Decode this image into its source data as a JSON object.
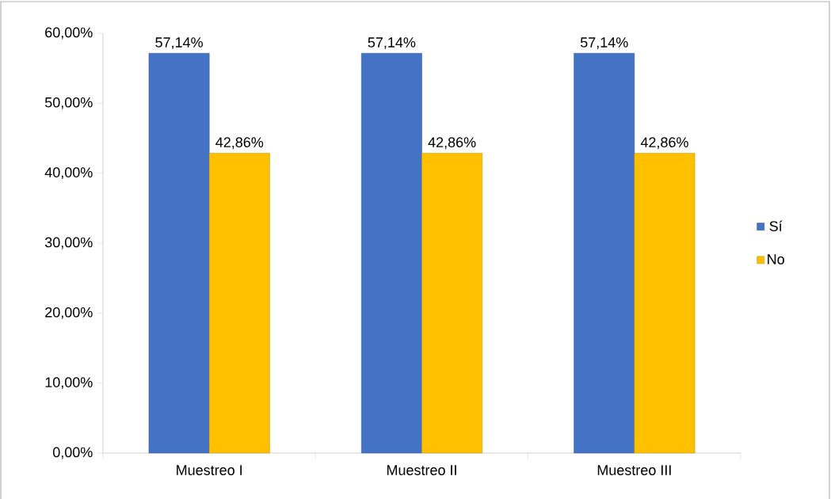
{
  "chart_data": {
    "type": "bar",
    "categories": [
      "Muestreo I",
      "Muestreo II",
      "Muestreo III"
    ],
    "series": [
      {
        "name": "Sí",
        "color": "#4472c4",
        "values": [
          57.14,
          57.14,
          57.14
        ],
        "value_labels": [
          "57,14%",
          "57,14%",
          "57,14%"
        ]
      },
      {
        "name": "No",
        "color": "#ffc000",
        "values": [
          42.86,
          42.86,
          42.86
        ],
        "value_labels": [
          "42,86%",
          "42,86%",
          "42,86%"
        ]
      }
    ],
    "ylim": [
      0,
      60
    ],
    "yticks": [
      {
        "value": 0,
        "label": "0,00%"
      },
      {
        "value": 10,
        "label": "10,00%"
      },
      {
        "value": 20,
        "label": "20,00%"
      },
      {
        "value": 30,
        "label": "30,00%"
      },
      {
        "value": 40,
        "label": "40,00%"
      },
      {
        "value": 50,
        "label": "50,00%"
      },
      {
        "value": 60,
        "label": "60,00%"
      }
    ],
    "legend": "right"
  }
}
